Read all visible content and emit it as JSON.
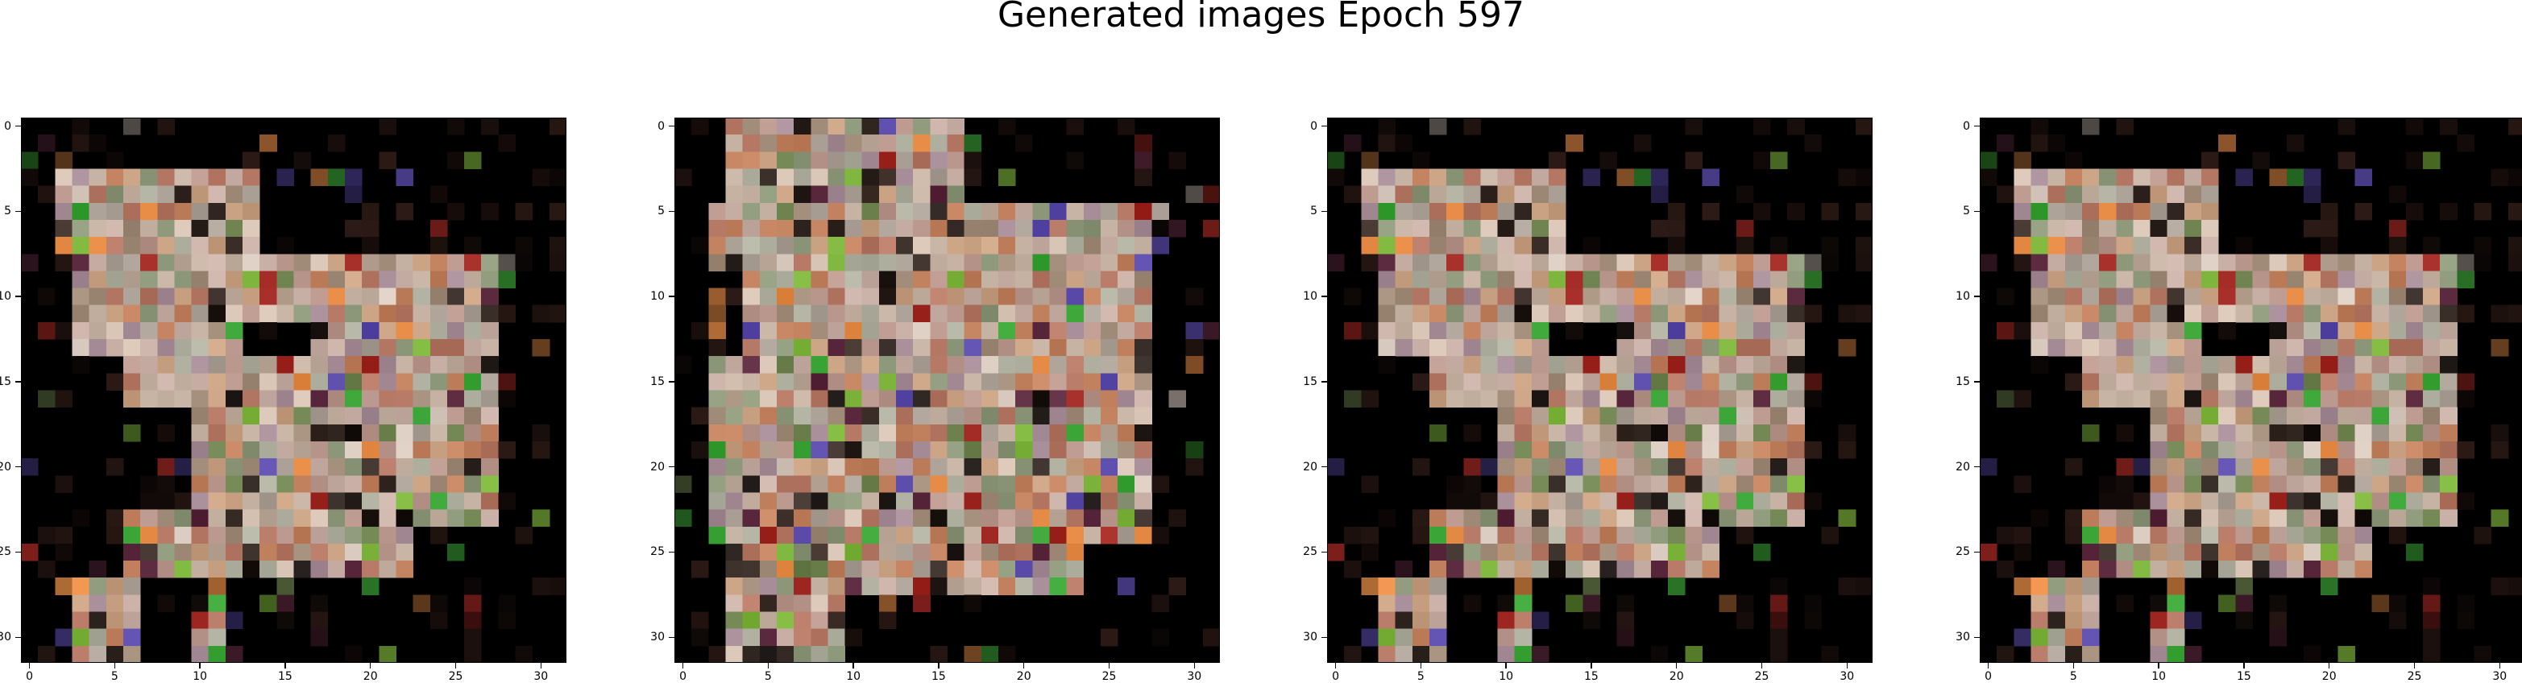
{
  "figure": {
    "title": "Generated images Epoch 597"
  },
  "panels": [
    {
      "id": "panel-1",
      "variant": "a"
    },
    {
      "id": "panel-2",
      "variant": "b"
    },
    {
      "id": "panel-3",
      "variant": "a"
    },
    {
      "id": "panel-4",
      "variant": "a"
    }
  ],
  "axes": {
    "x_ticks": [
      "0",
      "5",
      "10",
      "15",
      "20",
      "25",
      "30"
    ],
    "y_ticks": [
      "0",
      "5",
      "10",
      "15",
      "20",
      "25",
      "30"
    ],
    "x_range": [
      -0.5,
      31.5
    ],
    "y_range": [
      -0.5,
      31.5
    ],
    "pixel_grid": [
      32,
      32
    ]
  },
  "colors": {
    "background_pixel": "#000000",
    "palette_note_colors": [
      "#b9a99a",
      "#c89a7a",
      "#e58a4a",
      "#7fb23a",
      "#3ba43a",
      "#5a4aa8",
      "#9a2a22",
      "#5f6a45",
      "#d8c9bd"
    ]
  }
}
